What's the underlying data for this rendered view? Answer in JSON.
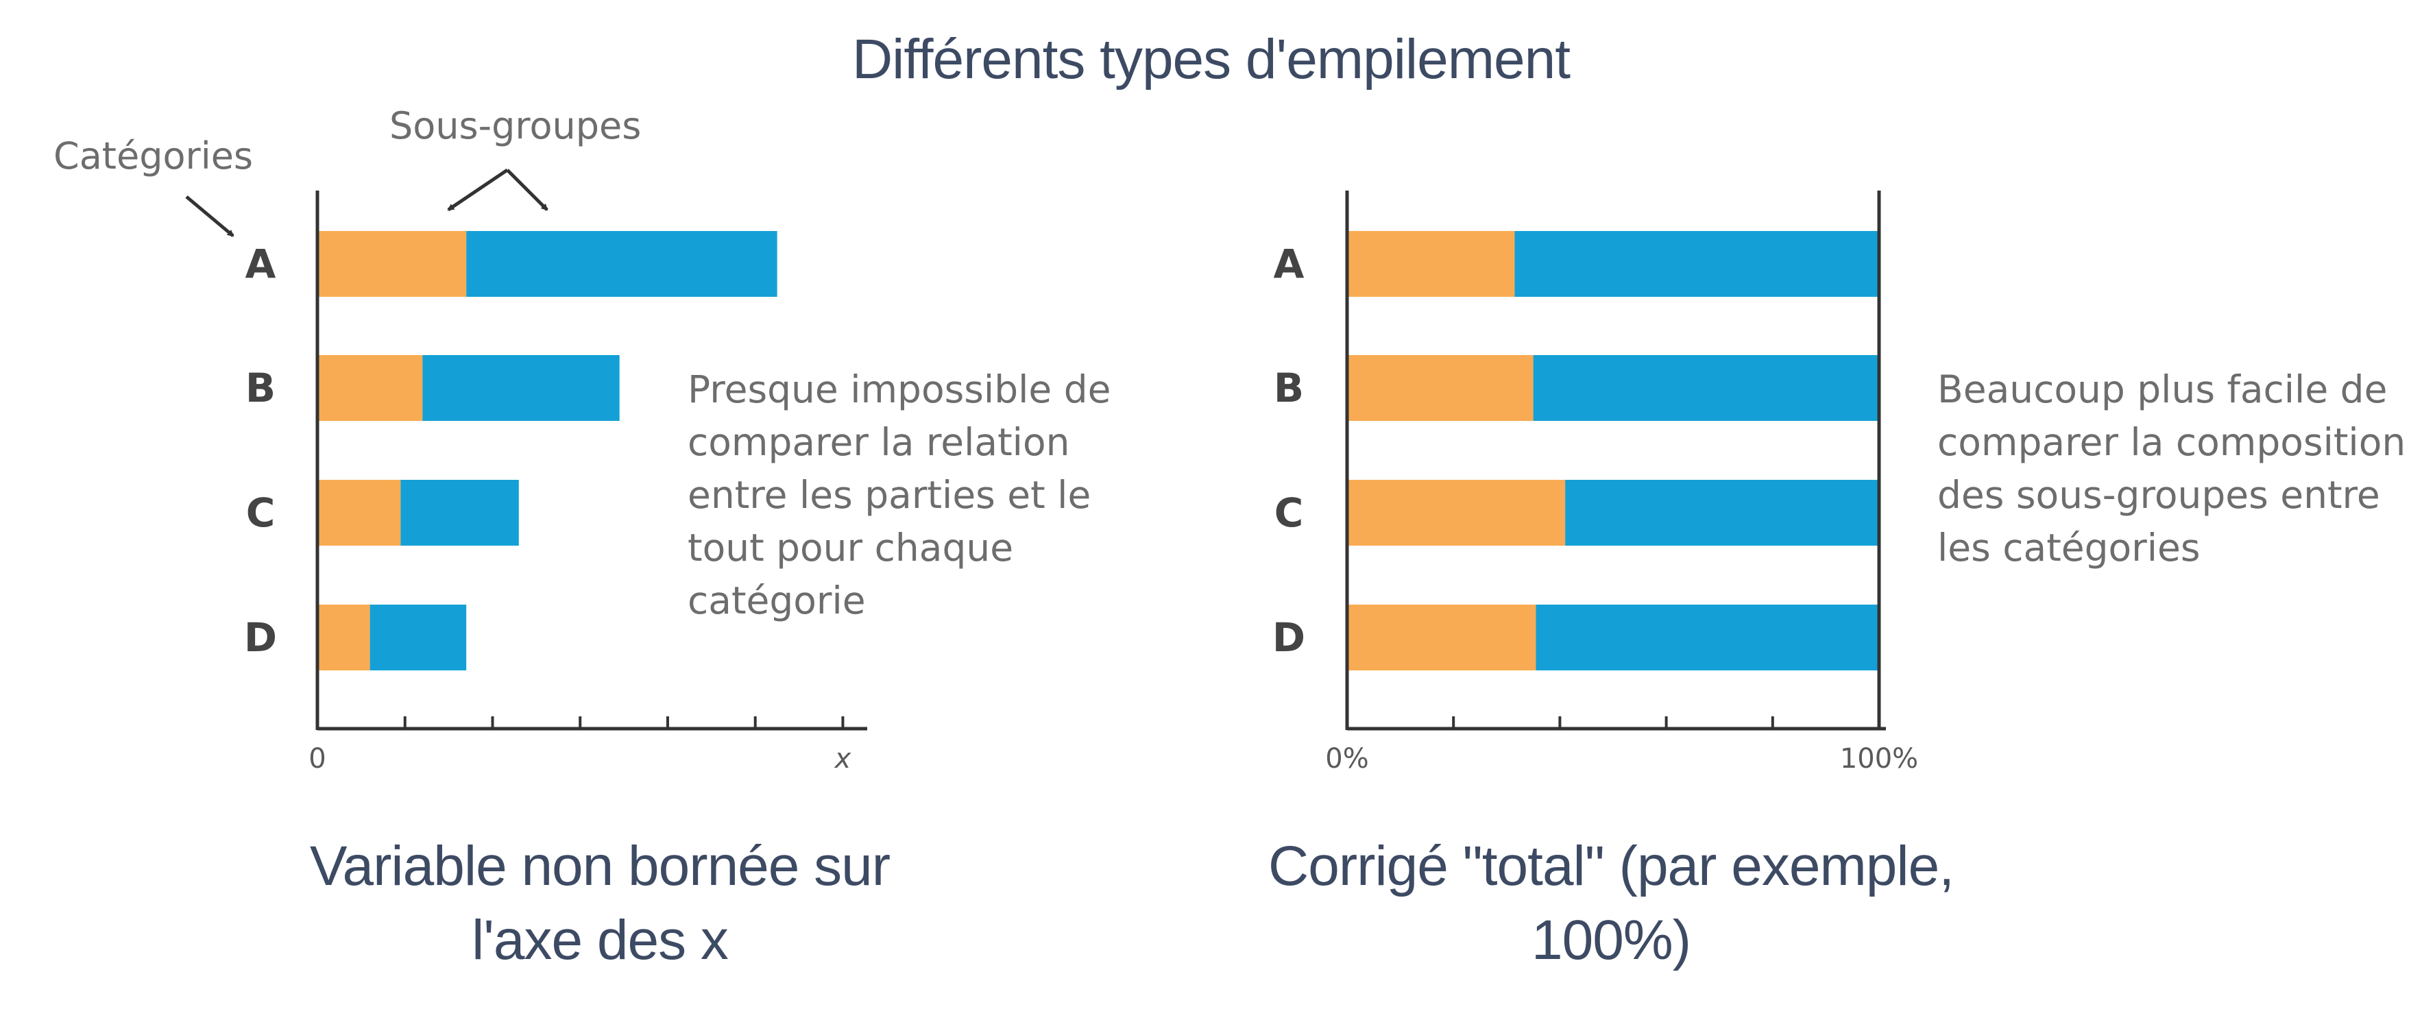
{
  "title": "Différents types d'empilement",
  "annotations": {
    "categories_label": "Catégories",
    "subgroups_label": "Sous-groupes"
  },
  "colors": {
    "subgroup_1": "#f8ab52",
    "subgroup_2": "#14a0d6",
    "axis": "#333333",
    "tick_label": "#5a5a5a"
  },
  "left_panel": {
    "description": [
      "Presque impossible de",
      "comparer la relation",
      "entre les parties et le",
      "tout pour chaque",
      "catégorie"
    ],
    "caption": [
      "Variable non bornée sur",
      "l'axe des x"
    ]
  },
  "right_panel": {
    "description": [
      "Beaucoup plus facile de",
      "comparer la composition",
      "des sous-groupes entre",
      "les catégories"
    ],
    "caption": [
      "Corrigé \"total\" (par exemple,",
      "100%)"
    ]
  },
  "chart_data": [
    {
      "type": "bar",
      "orientation": "horizontal",
      "stacked": true,
      "categories": [
        "A",
        "B",
        "C",
        "D"
      ],
      "series": [
        {
          "values": [
            1.7,
            1.2,
            0.95,
            0.6
          ]
        },
        {
          "values": [
            3.55,
            2.25,
            1.35,
            1.1
          ]
        }
      ],
      "xlim": [
        0,
        6.2
      ],
      "x_ticks": [
        0,
        1,
        2,
        3,
        4,
        5,
        6
      ],
      "x_tick_labels": [
        "0",
        "",
        "",
        "",
        "",
        "",
        "x"
      ]
    },
    {
      "type": "bar",
      "orientation": "horizontal",
      "stacked": true,
      "categories": [
        "A",
        "B",
        "C",
        "D"
      ],
      "series": [
        {
          "values": [
            31.5,
            35,
            41,
            35.5
          ]
        },
        {
          "values": [
            68.5,
            65,
            59,
            64.5
          ]
        }
      ],
      "xlim": [
        0,
        100
      ],
      "x_ticks": [
        0,
        20,
        40,
        60,
        80,
        100
      ],
      "x_tick_labels": [
        "0%",
        "",
        "",
        "",
        "",
        "100%"
      ]
    }
  ]
}
